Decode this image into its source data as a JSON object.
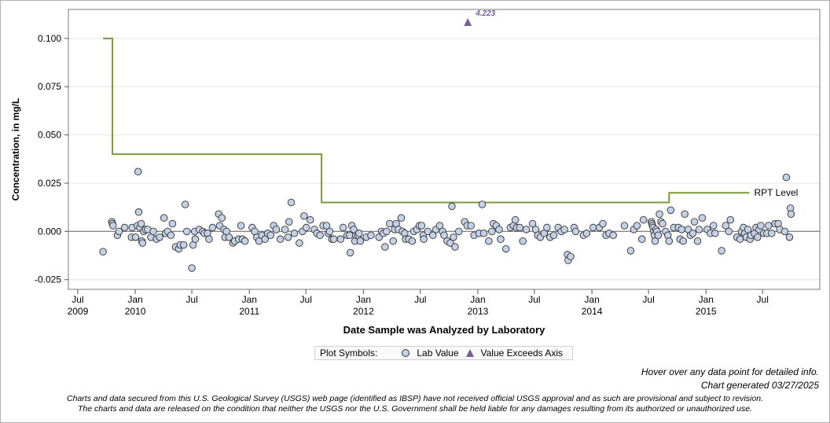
{
  "chart_data": {
    "type": "scatter",
    "xlabel": "Date Sample was Analyzed by Laboratory",
    "ylabel": "Concentration, in mg/L",
    "xlim": [
      "2009-06-01",
      "2015-12-31"
    ],
    "ylim": [
      -0.03,
      0.115
    ],
    "grid": true,
    "y_ticks": [
      "0.100",
      "0.075",
      "0.050",
      "0.025",
      "0.000",
      "-0.025"
    ],
    "x_ticks": [
      {
        "date": "2009-07-01",
        "label": "Jul",
        "year": "2009"
      },
      {
        "date": "2010-01-01",
        "label": "Jan",
        "year": "2010"
      },
      {
        "date": "2010-07-01",
        "label": "Jul",
        "year": ""
      },
      {
        "date": "2011-01-01",
        "label": "Jan",
        "year": "2011"
      },
      {
        "date": "2011-07-01",
        "label": "Jul",
        "year": ""
      },
      {
        "date": "2012-01-01",
        "label": "Jan",
        "year": "2012"
      },
      {
        "date": "2012-07-01",
        "label": "Jul",
        "year": ""
      },
      {
        "date": "2013-01-01",
        "label": "Jan",
        "year": "2013"
      },
      {
        "date": "2013-07-01",
        "label": "Jul",
        "year": ""
      },
      {
        "date": "2014-01-01",
        "label": "Jan",
        "year": "2014"
      },
      {
        "date": "2014-07-01",
        "label": "Jul",
        "year": ""
      },
      {
        "date": "2015-01-01",
        "label": "Jan",
        "year": "2015"
      },
      {
        "date": "2015-07-01",
        "label": "Jul",
        "year": ""
      }
    ],
    "rpt_level": {
      "label": "RPT Level",
      "color": "#7a9a3a",
      "steps": [
        {
          "from": "2009-09-20",
          "to": "2009-10-20",
          "value": 0.1
        },
        {
          "from": "2009-10-20",
          "to": "2011-08-20",
          "value": 0.04
        },
        {
          "from": "2011-08-20",
          "to": "2014-09-05",
          "value": 0.015
        },
        {
          "from": "2014-09-05",
          "to": "2015-05-20",
          "value": 0.02
        }
      ]
    },
    "exceeds_axis": [
      {
        "x": "2012-11-30",
        "value": "4.223"
      }
    ],
    "lab_values": [
      [
        "2009-09-20",
        -0.0105
      ],
      [
        "2009-10-18",
        0.005
      ],
      [
        "2009-10-20",
        0.004
      ],
      [
        "2009-10-22",
        0.003
      ],
      [
        "2009-11-05",
        -0.002
      ],
      [
        "2009-11-10",
        0.0
      ],
      [
        "2009-11-28",
        0.002
      ],
      [
        "2009-12-20",
        -0.003
      ],
      [
        "2009-12-22",
        0.002
      ],
      [
        "2010-01-02",
        -0.003
      ],
      [
        "2010-01-08",
        0.003
      ],
      [
        "2010-01-10",
        0.031
      ],
      [
        "2010-01-12",
        0.01
      ],
      [
        "2010-01-16",
        0.002
      ],
      [
        "2010-01-20",
        0.004
      ],
      [
        "2010-01-22",
        -0.005
      ],
      [
        "2010-01-24",
        -0.006
      ],
      [
        "2010-01-28",
        0.0
      ],
      [
        "2010-02-03",
        0.001
      ],
      [
        "2010-02-10",
        0.001
      ],
      [
        "2010-02-20",
        -0.003
      ],
      [
        "2010-02-28",
        0.0
      ],
      [
        "2010-03-10",
        -0.004
      ],
      [
        "2010-03-20",
        -0.003
      ],
      [
        "2010-04-03",
        0.007
      ],
      [
        "2010-04-08",
        -0.001
      ],
      [
        "2010-04-15",
        0.0
      ],
      [
        "2010-04-25",
        -0.002
      ],
      [
        "2010-04-30",
        0.004
      ],
      [
        "2010-05-10",
        -0.008
      ],
      [
        "2010-05-20",
        -0.009
      ],
      [
        "2010-05-25",
        -0.007
      ],
      [
        "2010-06-05",
        -0.007
      ],
      [
        "2010-06-10",
        0.014
      ],
      [
        "2010-06-15",
        0.0
      ],
      [
        "2010-07-01",
        -0.019
      ],
      [
        "2010-07-05",
        -0.007
      ],
      [
        "2010-07-10",
        0.0
      ],
      [
        "2010-07-12",
        -0.004
      ],
      [
        "2010-07-25",
        0.001
      ],
      [
        "2010-08-05",
        0.0
      ],
      [
        "2010-08-10",
        -0.001
      ],
      [
        "2010-08-20",
        -0.001
      ],
      [
        "2010-08-25",
        -0.004
      ],
      [
        "2010-09-05",
        0.002
      ],
      [
        "2010-09-25",
        0.009
      ],
      [
        "2010-09-28",
        0.003
      ],
      [
        "2010-10-05",
        0.007
      ],
      [
        "2010-10-12",
        0.001
      ],
      [
        "2010-10-15",
        -0.003
      ],
      [
        "2010-10-20",
        0.0
      ],
      [
        "2010-10-28",
        -0.003
      ],
      [
        "2010-11-10",
        -0.006
      ],
      [
        "2010-11-15",
        -0.005
      ],
      [
        "2010-11-28",
        -0.004
      ],
      [
        "2010-12-05",
        0.003
      ],
      [
        "2010-12-10",
        -0.004
      ],
      [
        "2010-12-18",
        -0.005
      ],
      [
        "2011-01-10",
        0.002
      ],
      [
        "2011-01-18",
        0.0
      ],
      [
        "2011-01-25",
        -0.003
      ],
      [
        "2011-02-01",
        -0.005
      ],
      [
        "2011-02-10",
        -0.002
      ],
      [
        "2011-02-20",
        -0.004
      ],
      [
        "2011-03-01",
        -0.001
      ],
      [
        "2011-03-10",
        -0.002
      ],
      [
        "2011-03-20",
        0.003
      ],
      [
        "2011-03-28",
        0.001
      ],
      [
        "2011-04-10",
        -0.004
      ],
      [
        "2011-04-25",
        0.001
      ],
      [
        "2011-05-05",
        -0.003
      ],
      [
        "2011-05-08",
        0.005
      ],
      [
        "2011-05-15",
        0.015
      ],
      [
        "2011-05-25",
        -0.001
      ],
      [
        "2011-06-10",
        -0.006
      ],
      [
        "2011-06-20",
        0.0
      ],
      [
        "2011-06-25",
        0.008
      ],
      [
        "2011-07-02",
        0.002
      ],
      [
        "2011-07-15",
        0.006
      ],
      [
        "2011-07-28",
        0.001
      ],
      [
        "2011-08-05",
        -0.001
      ],
      [
        "2011-08-15",
        -0.002
      ],
      [
        "2011-08-25",
        0.003
      ],
      [
        "2011-09-05",
        0.003
      ],
      [
        "2011-09-10",
        -0.001
      ],
      [
        "2011-09-15",
        0.0
      ],
      [
        "2011-09-22",
        -0.004
      ],
      [
        "2011-09-28",
        -0.004
      ],
      [
        "2011-10-20",
        -0.004
      ],
      [
        "2011-10-28",
        0.002
      ],
      [
        "2011-11-10",
        -0.002
      ],
      [
        "2011-11-18",
        -0.002
      ],
      [
        "2011-11-20",
        -0.011
      ],
      [
        "2011-11-25",
        0.003
      ],
      [
        "2011-12-01",
        0.001
      ],
      [
        "2011-12-05",
        -0.005
      ],
      [
        "2011-12-08",
        -0.002
      ],
      [
        "2011-12-15",
        -0.002
      ],
      [
        "2011-12-18",
        -0.001
      ],
      [
        "2011-12-22",
        -0.005
      ],
      [
        "2012-01-10",
        -0.003
      ],
      [
        "2012-01-25",
        -0.002
      ],
      [
        "2012-02-20",
        -0.003
      ],
      [
        "2012-02-28",
        0.0
      ],
      [
        "2012-03-05",
        -0.001
      ],
      [
        "2012-03-10",
        -0.008
      ],
      [
        "2012-03-15",
        0.0
      ],
      [
        "2012-03-25",
        0.004
      ],
      [
        "2012-04-05",
        -0.005
      ],
      [
        "2012-04-10",
        0.001
      ],
      [
        "2012-04-15",
        0.004
      ],
      [
        "2012-04-22",
        0.001
      ],
      [
        "2012-05-01",
        0.007
      ],
      [
        "2012-05-05",
        0.0
      ],
      [
        "2012-05-12",
        -0.001
      ],
      [
        "2012-05-15",
        -0.004
      ],
      [
        "2012-05-25",
        -0.004
      ],
      [
        "2012-06-05",
        -0.005
      ],
      [
        "2012-06-10",
        0.0
      ],
      [
        "2012-06-20",
        0.001
      ],
      [
        "2012-06-28",
        0.003
      ],
      [
        "2012-07-05",
        0.003
      ],
      [
        "2012-07-10",
        -0.002
      ],
      [
        "2012-07-12",
        -0.004
      ],
      [
        "2012-07-25",
        0.0
      ],
      [
        "2012-08-10",
        -0.002
      ],
      [
        "2012-08-20",
        0.001
      ],
      [
        "2012-09-01",
        0.003
      ],
      [
        "2012-09-10",
        0.0
      ],
      [
        "2012-09-15",
        -0.002
      ],
      [
        "2012-09-25",
        -0.005
      ],
      [
        "2012-10-05",
        -0.006
      ],
      [
        "2012-10-10",
        0.013
      ],
      [
        "2012-10-15",
        -0.003
      ],
      [
        "2012-10-20",
        -0.008
      ],
      [
        "2012-11-01",
        0.0
      ],
      [
        "2012-11-20",
        0.005
      ],
      [
        "2012-11-28",
        0.003
      ],
      [
        "2012-12-10",
        0.003
      ],
      [
        "2012-12-20",
        -0.002
      ],
      [
        "2013-01-05",
        -0.001
      ],
      [
        "2013-01-15",
        0.014
      ],
      [
        "2013-01-20",
        -0.001
      ],
      [
        "2013-02-05",
        -0.005
      ],
      [
        "2013-02-15",
        0.0
      ],
      [
        "2013-02-20",
        0.004
      ],
      [
        "2013-03-01",
        0.003
      ],
      [
        "2013-03-10",
        0.001
      ],
      [
        "2013-03-15",
        -0.004
      ],
      [
        "2013-04-01",
        -0.009
      ],
      [
        "2013-04-15",
        0.002
      ],
      [
        "2013-04-25",
        0.003
      ],
      [
        "2013-05-01",
        0.006
      ],
      [
        "2013-05-05",
        0.002
      ],
      [
        "2013-05-15",
        0.002
      ],
      [
        "2013-05-25",
        -0.005
      ],
      [
        "2013-06-05",
        0.001
      ],
      [
        "2013-06-25",
        0.004
      ],
      [
        "2013-07-05",
        0.001
      ],
      [
        "2013-07-12",
        -0.002
      ],
      [
        "2013-07-20",
        -0.003
      ],
      [
        "2013-08-01",
        -0.001
      ],
      [
        "2013-08-10",
        0.002
      ],
      [
        "2013-08-20",
        -0.003
      ],
      [
        "2013-09-01",
        -0.002
      ],
      [
        "2013-09-15",
        0.002
      ],
      [
        "2013-09-25",
        0.0
      ],
      [
        "2013-10-05",
        0.001
      ],
      [
        "2013-10-15",
        -0.012
      ],
      [
        "2013-10-17",
        -0.015
      ],
      [
        "2013-10-25",
        -0.013
      ],
      [
        "2013-11-05",
        0.002
      ],
      [
        "2013-11-10",
        0.0
      ],
      [
        "2013-12-05",
        -0.002
      ],
      [
        "2013-12-15",
        -0.001
      ],
      [
        "2014-01-05",
        0.002
      ],
      [
        "2014-01-25",
        0.002
      ],
      [
        "2014-02-05",
        0.004
      ],
      [
        "2014-02-15",
        -0.002
      ],
      [
        "2014-02-25",
        -0.001
      ],
      [
        "2014-03-10",
        -0.002
      ],
      [
        "2014-04-15",
        0.003
      ],
      [
        "2014-05-05",
        -0.01
      ],
      [
        "2014-05-15",
        0.001
      ],
      [
        "2014-05-25",
        0.003
      ],
      [
        "2014-06-10",
        -0.004
      ],
      [
        "2014-06-15",
        0.006
      ],
      [
        "2014-07-10",
        0.005
      ],
      [
        "2014-07-12",
        0.004
      ],
      [
        "2014-07-14",
        0.003
      ],
      [
        "2014-07-16",
        0.002
      ],
      [
        "2014-07-18",
        0.0
      ],
      [
        "2014-07-20",
        -0.002
      ],
      [
        "2014-07-22",
        -0.005
      ],
      [
        "2014-07-25",
        0.001
      ],
      [
        "2014-07-28",
        0.0
      ],
      [
        "2014-08-01",
        -0.002
      ],
      [
        "2014-08-05",
        0.009
      ],
      [
        "2014-08-10",
        0.005
      ],
      [
        "2014-08-15",
        0.004
      ],
      [
        "2014-08-25",
        0.0
      ],
      [
        "2014-09-01",
        -0.002
      ],
      [
        "2014-09-05",
        -0.005
      ],
      [
        "2014-09-10",
        0.011
      ],
      [
        "2014-09-20",
        0.002
      ],
      [
        "2014-10-05",
        0.002
      ],
      [
        "2014-10-10",
        -0.004
      ],
      [
        "2014-10-15",
        0.001
      ],
      [
        "2014-10-20",
        -0.005
      ],
      [
        "2014-10-25",
        0.009
      ],
      [
        "2014-11-05",
        0.001
      ],
      [
        "2014-11-12",
        -0.002
      ],
      [
        "2014-11-20",
        -0.001
      ],
      [
        "2014-11-25",
        0.005
      ],
      [
        "2014-12-05",
        -0.005
      ],
      [
        "2014-12-10",
        0.001
      ],
      [
        "2014-12-20",
        0.007
      ],
      [
        "2015-01-05",
        0.001
      ],
      [
        "2015-01-15",
        -0.001
      ],
      [
        "2015-01-25",
        0.003
      ],
      [
        "2015-01-30",
        -0.001
      ],
      [
        "2015-02-20",
        -0.01
      ],
      [
        "2015-03-05",
        0.003
      ],
      [
        "2015-03-15",
        0.0
      ],
      [
        "2015-03-20",
        0.006
      ],
      [
        "2015-04-10",
        -0.003
      ],
      [
        "2015-04-20",
        -0.004
      ],
      [
        "2015-04-25",
        0.0
      ],
      [
        "2015-05-01",
        0.002
      ],
      [
        "2015-05-05",
        -0.001
      ],
      [
        "2015-05-10",
        -0.003
      ],
      [
        "2015-05-15",
        0.001
      ],
      [
        "2015-05-22",
        -0.004
      ],
      [
        "2015-05-25",
        -0.002
      ],
      [
        "2015-06-05",
        -0.001
      ],
      [
        "2015-06-10",
        0.002
      ],
      [
        "2015-06-15",
        -0.003
      ],
      [
        "2015-06-20",
        0.001
      ],
      [
        "2015-06-25",
        0.003
      ],
      [
        "2015-07-05",
        -0.001
      ],
      [
        "2015-07-15",
        -0.001
      ],
      [
        "2015-07-20",
        0.003
      ],
      [
        "2015-07-30",
        -0.001
      ],
      [
        "2015-08-10",
        0.004
      ],
      [
        "2015-08-20",
        0.004
      ],
      [
        "2015-08-25",
        0.001
      ],
      [
        "2015-09-10",
        0.0
      ],
      [
        "2015-09-15",
        0.028
      ],
      [
        "2015-09-25",
        -0.003
      ],
      [
        "2015-09-28",
        0.012
      ],
      [
        "2015-09-30",
        0.009
      ]
    ]
  },
  "legend": {
    "title": "Plot Symbols:",
    "lab_value": "Lab Value",
    "exceeds": "Value Exceeds Axis"
  },
  "notes": {
    "hover": "Hover over any data point for detailed info.",
    "generated": "Chart generated 03/27/2025"
  },
  "disclaimer": {
    "line1": "Charts and data secured from this U.S. Geological Survey (USGS) web page (identified as IBSP) have not received official USGS approval and as such are provisional and subject to revision.",
    "line2": "The charts and data are released on the condition that neither the USGS nor the U.S. Government shall be held liable for any damages resulting from its authorized or unauthorized use."
  },
  "colors": {
    "marker_fill": "#c4d0e4",
    "marker_stroke": "#333333",
    "triangle": "#7a5c9a",
    "rpt": "#7a9a3a",
    "grid": "#e4e4e4",
    "zero_line": "#888888"
  }
}
